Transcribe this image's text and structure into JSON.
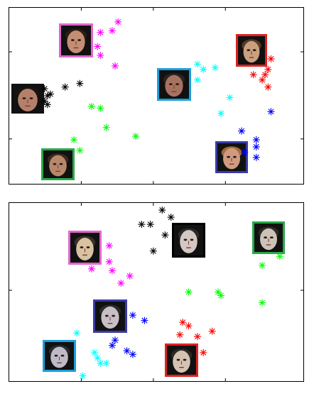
{
  "chart_data": [
    {
      "type": "scatter",
      "title": "",
      "xlabel": "",
      "ylabel": "",
      "grid": false,
      "series": [
        {
          "color": "#ff00ff",
          "points": [
            [
              0.31,
              0.86
            ],
            [
              0.35,
              0.87
            ],
            [
              0.3,
              0.78
            ],
            [
              0.31,
              0.73
            ],
            [
              0.37,
              0.92
            ],
            [
              0.36,
              0.67
            ]
          ]
        },
        {
          "color": "#000000",
          "points": [
            [
              0.13,
              0.5
            ],
            [
              0.14,
              0.51
            ],
            [
              0.12,
              0.47
            ],
            [
              0.13,
              0.45
            ],
            [
              0.19,
              0.55
            ],
            [
              0.24,
              0.57
            ],
            [
              0.12,
              0.54
            ]
          ]
        },
        {
          "color": "#00ffff",
          "points": [
            [
              0.64,
              0.68
            ],
            [
              0.66,
              0.65
            ],
            [
              0.7,
              0.66
            ],
            [
              0.64,
              0.59
            ],
            [
              0.75,
              0.49
            ],
            [
              0.72,
              0.4
            ]
          ]
        },
        {
          "color": "#ff0000",
          "points": [
            [
              0.89,
              0.71
            ],
            [
              0.88,
              0.65
            ],
            [
              0.87,
              0.62
            ],
            [
              0.83,
              0.62
            ],
            [
              0.86,
              0.59
            ],
            [
              0.88,
              0.55
            ]
          ]
        },
        {
          "color": "#00ff00",
          "points": [
            [
              0.28,
              0.44
            ],
            [
              0.31,
              0.43
            ],
            [
              0.33,
              0.32
            ],
            [
              0.22,
              0.25
            ],
            [
              0.24,
              0.19
            ],
            [
              0.43,
              0.27
            ]
          ]
        },
        {
          "color": "#0000ff",
          "points": [
            [
              0.89,
              0.41
            ],
            [
              0.79,
              0.3
            ],
            [
              0.84,
              0.25
            ],
            [
              0.84,
              0.21
            ],
            [
              0.84,
              0.15
            ],
            [
              0.8,
              0.18
            ]
          ]
        }
      ]
    },
    {
      "type": "scatter",
      "title": "",
      "xlabel": "",
      "ylabel": "",
      "grid": false,
      "series": [
        {
          "color": "#000000",
          "points": [
            [
              0.52,
              0.96
            ],
            [
              0.55,
              0.92
            ],
            [
              0.45,
              0.88
            ],
            [
              0.48,
              0.88
            ],
            [
              0.53,
              0.82
            ],
            [
              0.49,
              0.73
            ]
          ]
        },
        {
          "color": "#00ff00",
          "points": [
            [
              0.92,
              0.7
            ],
            [
              0.86,
              0.65
            ],
            [
              0.61,
              0.5
            ],
            [
              0.71,
              0.5
            ],
            [
              0.72,
              0.48
            ],
            [
              0.86,
              0.44
            ]
          ]
        },
        {
          "color": "#ff00ff",
          "points": [
            [
              0.34,
              0.76
            ],
            [
              0.34,
              0.67
            ],
            [
              0.28,
              0.63
            ],
            [
              0.35,
              0.62
            ],
            [
              0.41,
              0.59
            ],
            [
              0.38,
              0.55
            ]
          ]
        },
        {
          "color": "#0000ff",
          "points": [
            [
              0.42,
              0.37
            ],
            [
              0.46,
              0.34
            ],
            [
              0.36,
              0.23
            ],
            [
              0.35,
              0.2
            ],
            [
              0.4,
              0.17
            ],
            [
              0.42,
              0.15
            ]
          ]
        },
        {
          "color": "#ff0000",
          "points": [
            [
              0.59,
              0.33
            ],
            [
              0.61,
              0.31
            ],
            [
              0.58,
              0.26
            ],
            [
              0.64,
              0.25
            ],
            [
              0.69,
              0.28
            ],
            [
              0.66,
              0.16
            ]
          ]
        },
        {
          "color": "#00ffff",
          "points": [
            [
              0.23,
              0.27
            ],
            [
              0.29,
              0.16
            ],
            [
              0.3,
              0.13
            ],
            [
              0.31,
              0.1
            ],
            [
              0.33,
              0.1
            ],
            [
              0.25,
              0.03
            ]
          ]
        }
      ]
    }
  ],
  "faces": {
    "top": [
      {
        "frame_color": "#e066cc",
        "skin": "#c48e74",
        "hair": "#2b1d14"
      },
      {
        "frame_color": "#ffffff",
        "skin": "#b5806a",
        "hair": "#1a1410"
      },
      {
        "frame_color": "#1a9fdc",
        "skin": "#a87260",
        "hair": "#2a2420"
      },
      {
        "frame_color": "#dd2222",
        "skin": "#caa07f",
        "hair": "#5a3a22"
      },
      {
        "frame_color": "#2aa84a",
        "skin": "#b8876b",
        "hair": "#3a2a1e"
      },
      {
        "frame_color": "#3a3aa8",
        "skin": "#d09a80",
        "hair": "#a06a3a"
      }
    ],
    "bottom": [
      {
        "frame_color": "#e066cc",
        "skin": "#d8c2a0",
        "hair": "#3a3028"
      },
      {
        "frame_color": "#000000",
        "skin": "#d4c8c4",
        "hair": "#2a2a2a"
      },
      {
        "frame_color": "#2aa84a",
        "skin": "#ccc2b8",
        "hair": "#2e2a26"
      },
      {
        "frame_color": "#3a3aa8",
        "skin": "#c8bfc6",
        "hair": "#2c2a2a"
      },
      {
        "frame_color": "#1a9fdc",
        "skin": "#bfbac8",
        "hair": "#2a2a30"
      },
      {
        "frame_color": "#dd2222",
        "skin": "#d6c2b2",
        "hair": "#2c2824"
      }
    ]
  }
}
